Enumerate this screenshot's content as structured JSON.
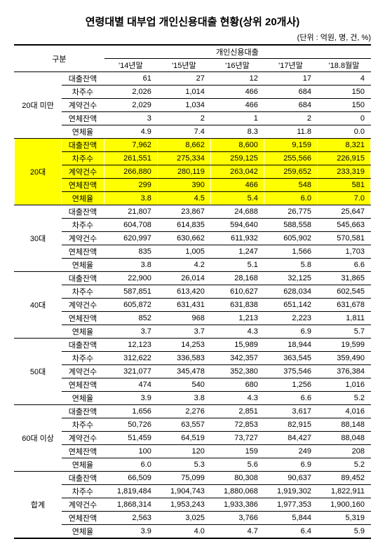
{
  "title": "연령대별 대부업 개인신용대출 현황(상위 20개사)",
  "unit": "(단위 : 억원, 명, 건, %)",
  "header": {
    "col1": "구분",
    "col2": "개인신용대출",
    "years": [
      "'14년말",
      "'15년말",
      "'16년말",
      "'17년말",
      "'18.8월말"
    ]
  },
  "metrics": [
    "대출잔액",
    "차주수",
    "계약건수",
    "연체잔액",
    "연체율"
  ],
  "groups": [
    {
      "name": "20대 미만",
      "highlight": false,
      "rows": [
        [
          "61",
          "27",
          "12",
          "17",
          "4"
        ],
        [
          "2,026",
          "1,014",
          "466",
          "684",
          "150"
        ],
        [
          "2,029",
          "1,034",
          "466",
          "684",
          "150"
        ],
        [
          "3",
          "2",
          "1",
          "2",
          "0"
        ],
        [
          "4.9",
          "7.4",
          "8.3",
          "11.8",
          "0.0"
        ]
      ]
    },
    {
      "name": "20대",
      "highlight": true,
      "rows": [
        [
          "7,962",
          "8,662",
          "8,600",
          "9,159",
          "8,321"
        ],
        [
          "261,551",
          "275,334",
          "259,125",
          "255,566",
          "226,915"
        ],
        [
          "266,880",
          "280,119",
          "263,042",
          "259,652",
          "233,319"
        ],
        [
          "299",
          "390",
          "466",
          "548",
          "581"
        ],
        [
          "3.8",
          "4.5",
          "5.4",
          "6.0",
          "7.0"
        ]
      ]
    },
    {
      "name": "30대",
      "highlight": false,
      "rows": [
        [
          "21,807",
          "23,867",
          "24,688",
          "26,775",
          "25,647"
        ],
        [
          "604,708",
          "614,835",
          "594,640",
          "588,558",
          "545,663"
        ],
        [
          "620,997",
          "630,662",
          "611,932",
          "605,902",
          "570,581"
        ],
        [
          "835",
          "1,005",
          "1,247",
          "1,566",
          "1,703"
        ],
        [
          "3.8",
          "4.2",
          "5.1",
          "5.8",
          "6.6"
        ]
      ]
    },
    {
      "name": "40대",
      "highlight": false,
      "rows": [
        [
          "22,900",
          "26,014",
          "28,168",
          "32,125",
          "31,865"
        ],
        [
          "587,851",
          "613,420",
          "610,627",
          "628,034",
          "602,545"
        ],
        [
          "605,872",
          "631,431",
          "631,838",
          "651,142",
          "631,678"
        ],
        [
          "852",
          "968",
          "1,213",
          "2,223",
          "1,811"
        ],
        [
          "3.7",
          "3.7",
          "4.3",
          "6.9",
          "5.7"
        ]
      ]
    },
    {
      "name": "50대",
      "highlight": false,
      "rows": [
        [
          "12,123",
          "14,253",
          "15,989",
          "18,944",
          "19,599"
        ],
        [
          "312,622",
          "336,583",
          "342,357",
          "363,545",
          "359,490"
        ],
        [
          "321,077",
          "345,478",
          "352,380",
          "375,546",
          "376,384"
        ],
        [
          "474",
          "540",
          "680",
          "1,256",
          "1,016"
        ],
        [
          "3.9",
          "3.8",
          "4.3",
          "6.6",
          "5.2"
        ]
      ]
    },
    {
      "name": "60대 이상",
      "highlight": false,
      "rows": [
        [
          "1,656",
          "2,276",
          "2,851",
          "3,617",
          "4,016"
        ],
        [
          "50,726",
          "63,557",
          "72,853",
          "82,915",
          "88,148"
        ],
        [
          "51,459",
          "64,519",
          "73,727",
          "84,427",
          "88,048"
        ],
        [
          "100",
          "120",
          "159",
          "249",
          "208"
        ],
        [
          "6.0",
          "5.3",
          "5.6",
          "6.9",
          "5.2"
        ]
      ]
    },
    {
      "name": "합계",
      "highlight": false,
      "rows": [
        [
          "66,509",
          "75,099",
          "80,308",
          "90,637",
          "89,452"
        ],
        [
          "1,819,484",
          "1,904,743",
          "1,880,068",
          "1,919,302",
          "1,822,911"
        ],
        [
          "1,868,314",
          "1,953,243",
          "1,933,386",
          "1,977,353",
          "1,900,160"
        ],
        [
          "2,563",
          "3,025",
          "3,766",
          "5,844",
          "5,319"
        ],
        [
          "3.9",
          "4.0",
          "4.7",
          "6.4",
          "5.9"
        ]
      ]
    }
  ]
}
